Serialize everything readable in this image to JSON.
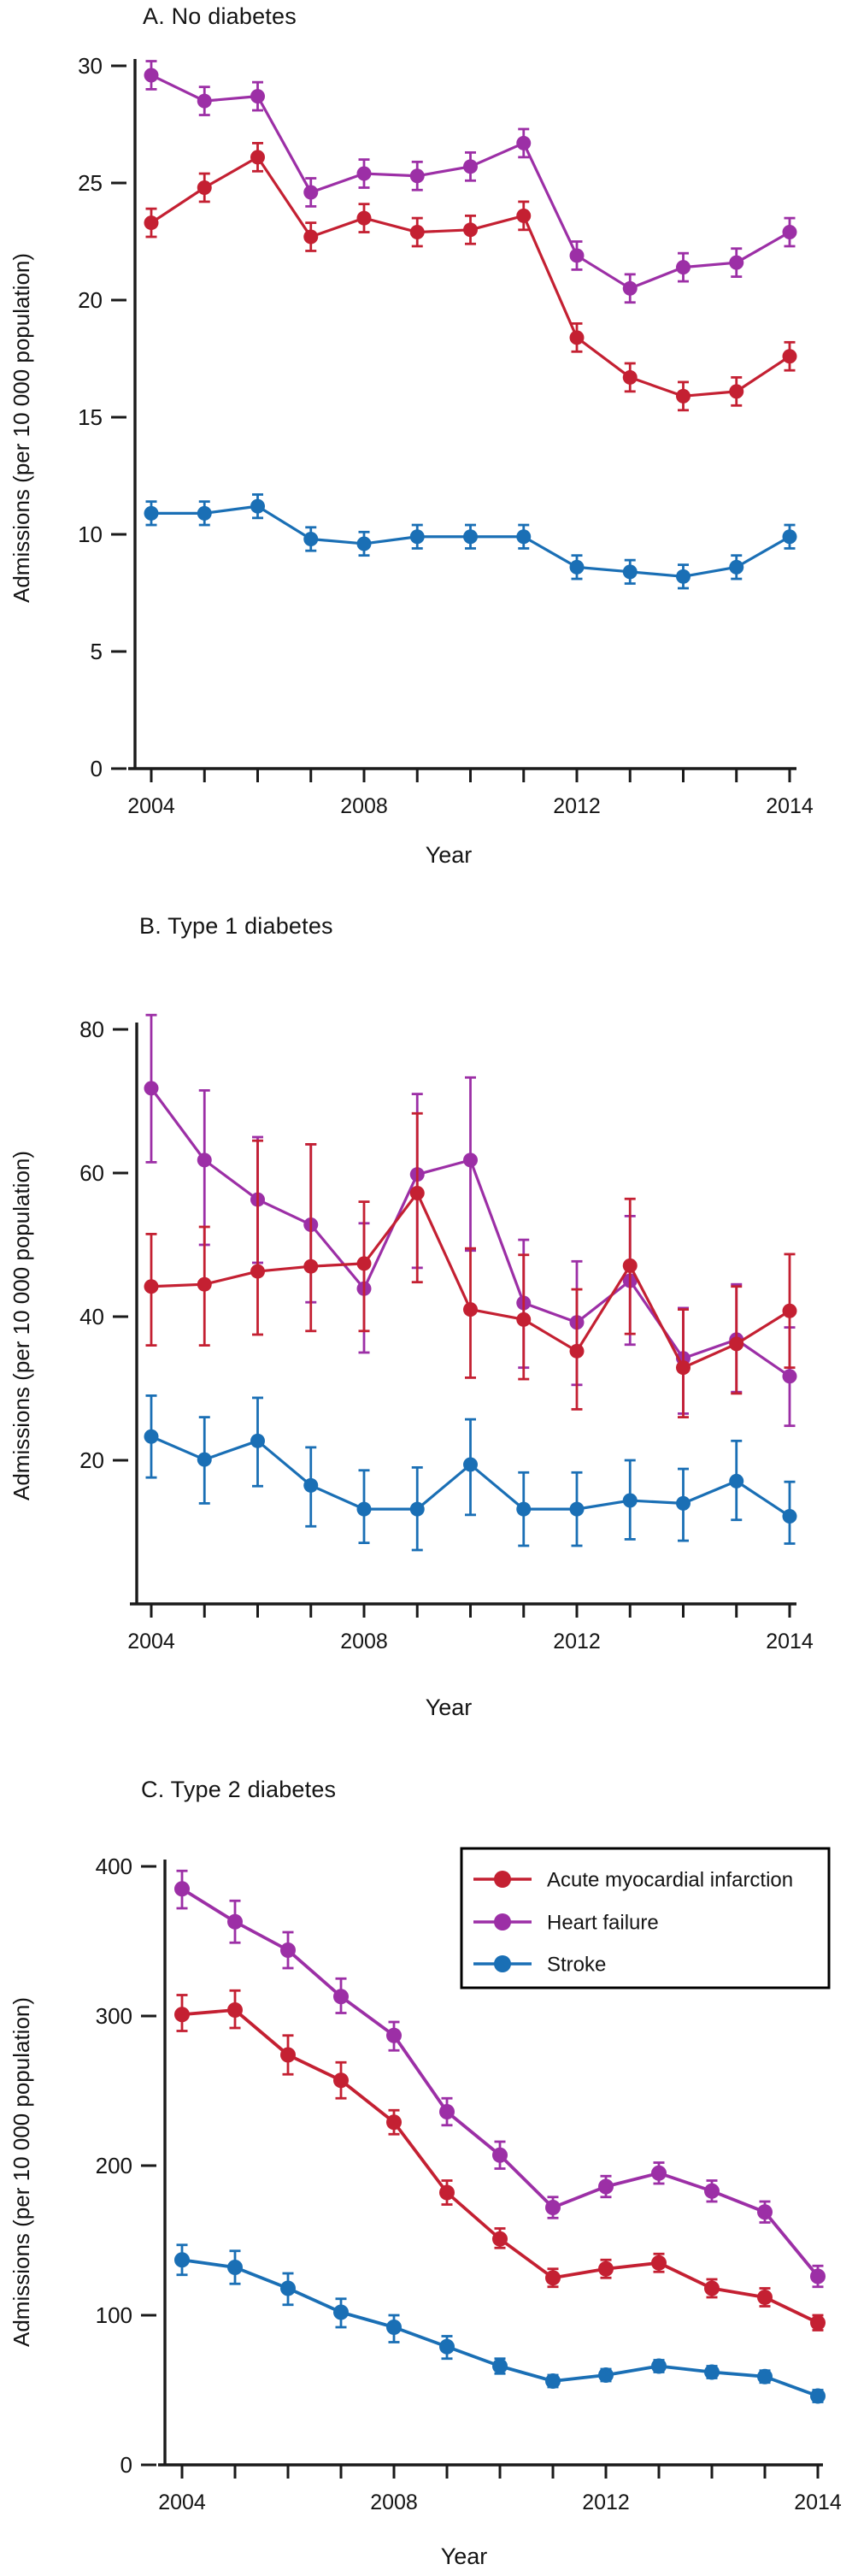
{
  "figure": {
    "x_axis_label": "Year",
    "y_axis_label": "Admissions (per  10 000 population)"
  },
  "colors": {
    "ami": "#c42032",
    "hf": "#9c2fa6",
    "stroke_series": "#1a6fb5",
    "axis": "#1a1a1a",
    "background": "#ffffff"
  },
  "legend": {
    "entries": [
      {
        "label": "Acute myocardial infarction",
        "color_key": "ami"
      },
      {
        "label": "Heart failure",
        "color_key": "hf"
      },
      {
        "label": "Stroke",
        "color_key": "stroke_series"
      }
    ]
  },
  "chart_data": [
    {
      "type": "line",
      "title": "A. No diabetes",
      "xlabel": "Year",
      "ylabel": "Admissions (per  10 000 population)",
      "ylim": [
        0,
        30
      ],
      "yticks": [
        0,
        5,
        10,
        15,
        20,
        25,
        30
      ],
      "x_categories": [
        "2004",
        "2005",
        "2006",
        "2007",
        "2008",
        "2009",
        "2010",
        "2011",
        "2012",
        "2012.5",
        "2013",
        "2013.5",
        "2014"
      ],
      "x_tick_labels": [
        "2004",
        "",
        "",
        "",
        "2008",
        "",
        "",
        "",
        "2012",
        "",
        "",
        "",
        "2014"
      ],
      "grid": false,
      "legend_position": "none",
      "series": [
        {
          "name": "Heart failure",
          "color_key": "hf",
          "values": [
            29.6,
            28.5,
            28.7,
            24.6,
            25.4,
            25.3,
            25.7,
            26.7,
            21.9,
            20.5,
            21.4,
            21.6,
            22.9
          ],
          "err_lo": [
            29.0,
            27.9,
            28.1,
            24.0,
            24.8,
            24.7,
            25.1,
            26.1,
            21.3,
            19.9,
            20.8,
            21.0,
            22.3
          ],
          "err_hi": [
            30.2,
            29.1,
            29.3,
            25.2,
            26.0,
            25.9,
            26.3,
            27.3,
            22.5,
            21.1,
            22.0,
            22.2,
            23.5
          ]
        },
        {
          "name": "Acute myocardial infarction",
          "color_key": "ami",
          "values": [
            23.3,
            24.8,
            26.1,
            22.7,
            23.5,
            22.9,
            23.0,
            23.6,
            18.4,
            16.7,
            15.9,
            16.1,
            17.6
          ],
          "err_lo": [
            22.7,
            24.2,
            25.5,
            22.1,
            22.9,
            22.3,
            22.4,
            23.0,
            17.8,
            16.1,
            15.3,
            15.5,
            17.0
          ],
          "err_hi": [
            23.9,
            25.4,
            26.7,
            23.3,
            24.1,
            23.5,
            23.6,
            24.2,
            19.0,
            17.3,
            16.5,
            16.7,
            18.2
          ]
        },
        {
          "name": "Stroke",
          "color_key": "stroke_series",
          "values": [
            10.9,
            10.9,
            11.2,
            9.8,
            9.6,
            9.9,
            9.9,
            9.9,
            8.6,
            8.4,
            8.2,
            8.6,
            9.9
          ],
          "err_lo": [
            10.4,
            10.4,
            10.7,
            9.3,
            9.1,
            9.4,
            9.4,
            9.4,
            8.1,
            7.9,
            7.7,
            8.1,
            9.4
          ],
          "err_hi": [
            11.4,
            11.4,
            11.7,
            10.3,
            10.1,
            10.4,
            10.4,
            10.4,
            9.1,
            8.9,
            8.7,
            9.1,
            10.4
          ]
        }
      ]
    },
    {
      "type": "line",
      "title": "B. Type 1 diabetes",
      "xlabel": "Year",
      "ylabel": "Admissions (per  10 000 population)",
      "ylim": [
        0,
        84
      ],
      "yticks": [
        20,
        40,
        60,
        80
      ],
      "x_categories": [
        "2004",
        "2005",
        "2006",
        "2007",
        "2008",
        "2009",
        "2010",
        "2011",
        "2012",
        "2012.5",
        "2013",
        "2013.5",
        "2014"
      ],
      "x_tick_labels": [
        "2004",
        "",
        "",
        "",
        "2008",
        "",
        "",
        "",
        "2012",
        "",
        "",
        "",
        "2014"
      ],
      "grid": false,
      "legend_position": "none",
      "series": [
        {
          "name": "Heart failure",
          "color_key": "hf",
          "values": [
            71.8,
            61.8,
            56.3,
            52.8,
            43.9,
            59.8,
            61.8,
            41.9,
            39.2,
            45.0,
            34.2,
            36.8,
            31.7
          ],
          "err_lo": [
            61.5,
            50.0,
            47.5,
            42.0,
            35.0,
            46.8,
            49.2,
            32.9,
            30.5,
            36.1,
            26.5,
            29.5,
            24.8
          ],
          "err_hi": [
            82.0,
            71.5,
            65.0,
            64.0,
            53.0,
            71.0,
            73.3,
            50.7,
            47.7,
            54.0,
            41.2,
            44.5,
            38.5
          ]
        },
        {
          "name": "Acute myocardial infarction",
          "color_key": "ami",
          "values": [
            44.2,
            44.5,
            46.3,
            47.0,
            47.4,
            57.2,
            41.0,
            39.6,
            35.2,
            47.1,
            32.9,
            36.2,
            40.8
          ],
          "err_lo": [
            36.0,
            36.0,
            37.5,
            38.0,
            38.0,
            44.8,
            31.5,
            31.3,
            27.1,
            37.6,
            26.0,
            29.3,
            32.9
          ],
          "err_hi": [
            51.5,
            52.5,
            64.5,
            64.0,
            56.0,
            68.3,
            49.5,
            48.6,
            43.8,
            56.4,
            41.0,
            44.2,
            48.7
          ]
        },
        {
          "name": "Stroke",
          "color_key": "stroke_series",
          "values": [
            23.3,
            20.1,
            22.7,
            16.5,
            13.2,
            13.2,
            19.4,
            13.2,
            13.2,
            14.4,
            14.0,
            17.1,
            12.2
          ],
          "err_lo": [
            17.6,
            14.0,
            16.4,
            10.8,
            8.5,
            7.5,
            12.4,
            8.1,
            8.1,
            9.0,
            8.8,
            11.7,
            8.4
          ],
          "err_hi": [
            29.0,
            26.0,
            28.7,
            21.8,
            18.6,
            19.0,
            25.7,
            18.3,
            18.3,
            20.0,
            18.8,
            22.7,
            17.0
          ]
        }
      ]
    },
    {
      "type": "line",
      "title": "C. Type 2 diabetes",
      "xlabel": "Year",
      "ylabel": "Admissions (per  10 000 population)",
      "ylim": [
        0,
        400
      ],
      "yticks": [
        0,
        100,
        200,
        300,
        400
      ],
      "x_categories": [
        "2004",
        "2005",
        "2006",
        "2007",
        "2008",
        "2009",
        "2010",
        "2011",
        "2012",
        "2012.5",
        "2013",
        "2013.5",
        "2014"
      ],
      "x_tick_labels": [
        "2004",
        "",
        "",
        "",
        "2008",
        "",
        "",
        "",
        "2012",
        "",
        "",
        "",
        "2014"
      ],
      "grid": false,
      "legend_position": "top-right",
      "series": [
        {
          "name": "Heart failure",
          "color_key": "hf",
          "values": [
            385,
            363,
            344,
            313,
            287,
            236,
            207,
            172,
            186,
            195,
            183,
            169,
            126
          ],
          "err_lo": [
            372,
            349,
            332,
            302,
            277,
            227,
            198,
            165,
            179,
            188,
            176,
            162,
            119
          ],
          "err_hi": [
            397,
            377,
            356,
            325,
            296,
            245,
            216,
            179,
            193,
            202,
            190,
            176,
            133
          ]
        },
        {
          "name": "Acute myocardial infarction",
          "color_key": "ami",
          "values": [
            301,
            304,
            274,
            257,
            229,
            182,
            151,
            125,
            131,
            135,
            118,
            112,
            95
          ],
          "err_lo": [
            290,
            292,
            261,
            245,
            221,
            174,
            145,
            119,
            125,
            129,
            112,
            106,
            90
          ],
          "err_hi": [
            314,
            317,
            287,
            269,
            237,
            190,
            158,
            131,
            137,
            141,
            124,
            118,
            100
          ]
        },
        {
          "name": "Stroke",
          "color_key": "stroke_series",
          "values": [
            137,
            132,
            118,
            102,
            92,
            79,
            66,
            56,
            60,
            66,
            62,
            59,
            46
          ],
          "err_lo": [
            127,
            121,
            107,
            92,
            82,
            71,
            61,
            52,
            56,
            62,
            58,
            55,
            42
          ],
          "err_hi": [
            147,
            143,
            128,
            111,
            100,
            86,
            71,
            60,
            64,
            70,
            66,
            63,
            50
          ]
        }
      ]
    }
  ]
}
